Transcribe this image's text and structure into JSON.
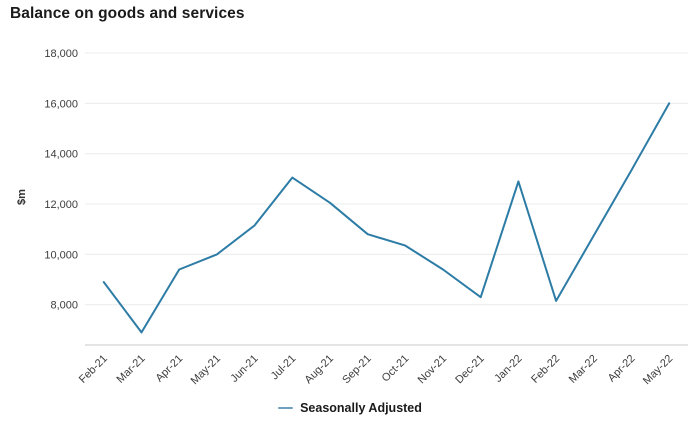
{
  "title": "Balance on goods and services",
  "legend": {
    "label": "Seasonally Adjusted"
  },
  "colors": {
    "line": "#2d7ca6",
    "legend_marker": "#6f9fbe",
    "gridline": "#ececec",
    "axis_line": "#c9c9c9",
    "tick_text": "#3d3d3d",
    "title_text": "#1a1a1a"
  },
  "chart_data": {
    "type": "line",
    "title": "Balance on goods and services",
    "xlabel": "",
    "ylabel": "$m",
    "categories": [
      "Feb-21",
      "Mar-21",
      "Apr-21",
      "May-21",
      "Jun-21",
      "Jul-21",
      "Aug-21",
      "Sep-21",
      "Oct-21",
      "Nov-21",
      "Dec-21",
      "Jan-22",
      "Feb-22",
      "Mar-22",
      "Apr-22",
      "May-22"
    ],
    "series": [
      {
        "name": "Seasonally Adjusted",
        "values": [
          8900,
          6900,
          9400,
          10000,
          11150,
          13050,
          12050,
          10800,
          10350,
          9400,
          8300,
          12900,
          8150,
          10750,
          13350,
          16000
        ]
      }
    ],
    "ylim": [
      6400,
      18000
    ],
    "yticks": [
      8000,
      10000,
      12000,
      14000,
      16000,
      18000
    ],
    "ytick_labels": [
      "8,000",
      "10,000",
      "12,000",
      "14,000",
      "16,000",
      "18,000"
    ],
    "grid": true,
    "legend_position": "bottom"
  }
}
